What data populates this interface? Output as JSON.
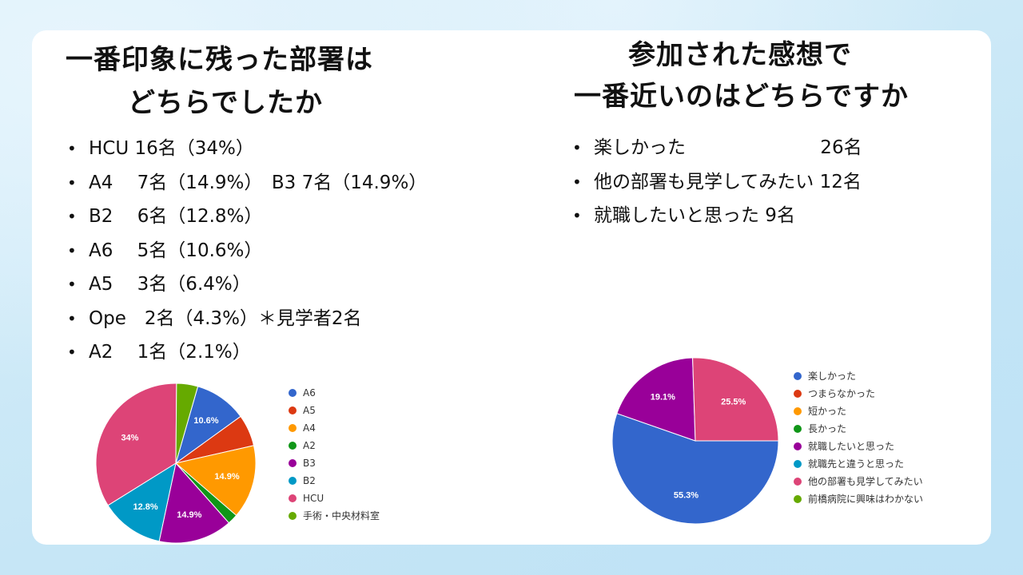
{
  "left": {
    "title_line1": "一番印象に残った部署は",
    "title_line2": "どちらでしたか",
    "items": [
      "HCU 16名（34%）",
      "A4　 7名（14.9%）　B3 7名（14.9%）",
      "B2　 6名（12.8%）",
      "A6　 5名（10.6%）",
      "A5　 3名（6.4%）",
      "Ope　2名（4.3%）＊見学者2名",
      "A2　 1名（2.1%）"
    ]
  },
  "right": {
    "title_line1": "参加された感想で",
    "title_line2": "一番近いのはどちらですか",
    "items": [
      "楽しかった　　　　　　　 26名",
      "他の部署も見学してみたい 12名",
      "就職したいと思った 9名"
    ]
  },
  "chart_data": [
    {
      "type": "pie",
      "start_angle_deg": 16,
      "slices": [
        {
          "label": "A6",
          "value": 10.6,
          "color": "#3366cc",
          "display": "10.6%"
        },
        {
          "label": "A5",
          "value": 6.4,
          "color": "#dc3912",
          "display": ""
        },
        {
          "label": "A4",
          "value": 14.9,
          "color": "#ff9900",
          "display": "14.9%"
        },
        {
          "label": "A2",
          "value": 2.1,
          "color": "#109618",
          "display": ""
        },
        {
          "label": "B3",
          "value": 14.9,
          "color": "#990099",
          "display": "14.9%"
        },
        {
          "label": "B2",
          "value": 12.8,
          "color": "#0099c6",
          "display": "12.8%"
        },
        {
          "label": "HCU",
          "value": 34.0,
          "color": "#dd4477",
          "display": "34%"
        },
        {
          "label": "手術・中央材料室",
          "value": 4.3,
          "color": "#66aa00",
          "display": ""
        }
      ]
    },
    {
      "type": "pie",
      "start_angle_deg": 90,
      "slices": [
        {
          "label": "楽しかった",
          "value": 55.3,
          "color": "#3366cc",
          "display": "55.3%"
        },
        {
          "label": "つまらなかった",
          "value": 0,
          "color": "#dc3912",
          "display": ""
        },
        {
          "label": "短かった",
          "value": 0,
          "color": "#ff9900",
          "display": ""
        },
        {
          "label": "長かった",
          "value": 0,
          "color": "#109618",
          "display": ""
        },
        {
          "label": "就職したいと思った",
          "value": 19.1,
          "color": "#990099",
          "display": "19.1%"
        },
        {
          "label": "就職先と違うと思った",
          "value": 0,
          "color": "#0099c6",
          "display": ""
        },
        {
          "label": "他の部署も見学してみたい",
          "value": 25.5,
          "color": "#dd4477",
          "display": "25.5%"
        },
        {
          "label": "前橋病院に興味はわかない",
          "value": 0,
          "color": "#66aa00",
          "display": ""
        }
      ]
    }
  ]
}
